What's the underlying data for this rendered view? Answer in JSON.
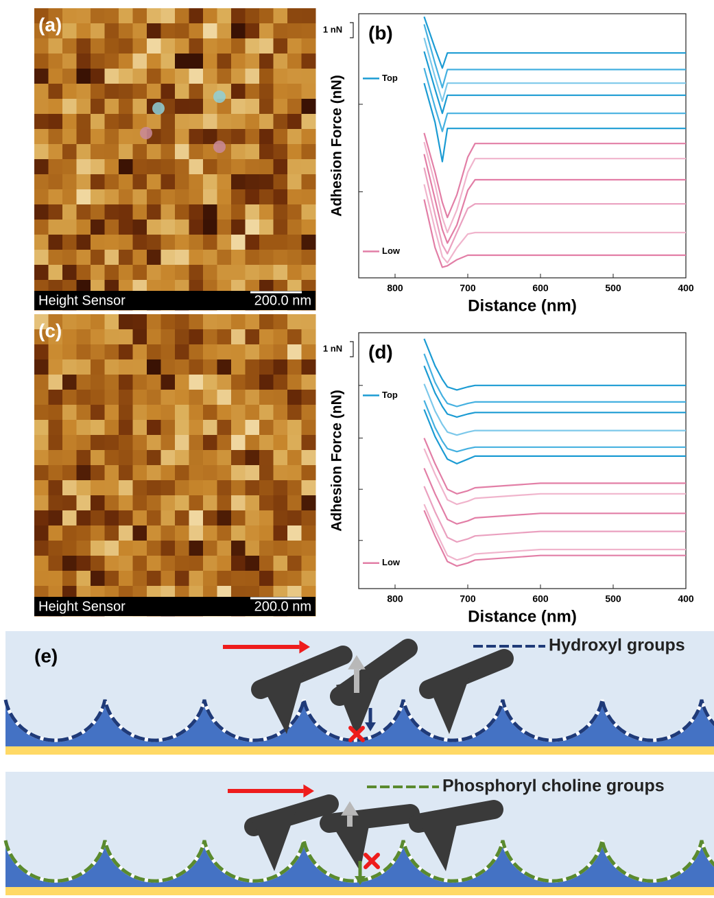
{
  "panels": {
    "a": {
      "label": "(a)",
      "caption": "Height Sensor",
      "scale_bar": "200.0 nm"
    },
    "c": {
      "label": "(c)",
      "caption": "Height Sensor",
      "scale_bar": "200.0 nm"
    },
    "e": {
      "label": "(e)",
      "legend": [
        "Hydroxyl groups",
        "Phosphoryl choline groups"
      ]
    }
  },
  "chart_data": [
    {
      "type": "line",
      "label": "(b)",
      "scale_bar": "1 nN",
      "x_label": "Distance (nm)",
      "y_label": "Adhesion Force (nN)",
      "x": [
        760,
        745,
        735,
        728,
        715,
        700,
        690,
        600,
        500,
        400
      ],
      "xlim": [
        850,
        400
      ],
      "xticks": [
        800,
        700,
        600,
        500,
        400
      ],
      "ylim": [
        0,
        17.5
      ],
      "yticks": [
        5.7,
        11.5
      ],
      "series": [
        {
          "name": "Top",
          "color": "#1b9bd3",
          "values": [
            17.3,
            15.2,
            13.9,
            14.9,
            14.9,
            14.9,
            14.9,
            14.9,
            14.9,
            14.9
          ]
        },
        {
          "color": "#44b0e0",
          "values": [
            16.8,
            14.2,
            12.6,
            13.8,
            13.8,
            13.8,
            13.8,
            13.8,
            13.8,
            13.8
          ]
        },
        {
          "color": "#7cc8ea",
          "values": [
            15.9,
            13.3,
            11.7,
            12.9,
            12.9,
            12.9,
            12.9,
            12.9,
            12.9,
            12.9
          ]
        },
        {
          "color": "#1b9bd3",
          "values": [
            15.0,
            12.5,
            10.9,
            12.1,
            12.1,
            12.1,
            12.1,
            12.1,
            12.1,
            12.1
          ]
        },
        {
          "color": "#44b0e0",
          "values": [
            13.9,
            11.3,
            9.7,
            10.9,
            10.9,
            10.9,
            10.9,
            10.9,
            10.9,
            10.9
          ]
        },
        {
          "color": "#1b9bd3",
          "values": [
            12.9,
            10.3,
            7.7,
            9.9,
            9.9,
            9.9,
            9.9,
            9.9,
            9.9,
            9.9
          ]
        },
        {
          "color": "#e27ea6",
          "values": [
            9.6,
            7.0,
            5.0,
            4.0,
            5.5,
            8.0,
            8.9,
            8.9,
            8.9,
            8.9
          ]
        },
        {
          "color": "#f0b4cc",
          "values": [
            9.0,
            6.2,
            4.0,
            3.0,
            4.5,
            7.0,
            7.9,
            7.9,
            7.9,
            7.9
          ]
        },
        {
          "color": "#e27ea6",
          "values": [
            8.2,
            5.2,
            3.2,
            2.3,
            3.5,
            5.8,
            6.5,
            6.5,
            6.5,
            6.5
          ]
        },
        {
          "color": "#eaa0bf",
          "values": [
            7.3,
            4.2,
            2.2,
            1.6,
            3.0,
            4.6,
            4.9,
            4.9,
            4.9,
            4.9
          ]
        },
        {
          "color": "#f0b4cc",
          "values": [
            6.2,
            3.2,
            1.4,
            1.0,
            2.0,
            2.9,
            3.0,
            3.0,
            3.0,
            3.0
          ]
        },
        {
          "name": "Low",
          "color": "#e27ea6",
          "values": [
            5.2,
            2.0,
            0.7,
            0.8,
            1.2,
            1.5,
            1.5,
            1.5,
            1.5,
            1.5
          ]
        }
      ]
    },
    {
      "type": "line",
      "label": "(d)",
      "scale_bar": "1 nN",
      "x_label": "Distance (nm)",
      "y_label": "Adhesion Force (nN)",
      "x": [
        760,
        745,
        735,
        728,
        715,
        700,
        690,
        600,
        500,
        400
      ],
      "xlim": [
        850,
        400
      ],
      "xticks": [
        800,
        700,
        600,
        500,
        400
      ],
      "ylim": [
        0,
        17
      ],
      "yticks": [
        3.2,
        6.6,
        10.0,
        13.5
      ],
      "series": [
        {
          "name": "Top",
          "color": "#1b9bd3",
          "values": [
            16.6,
            14.8,
            13.9,
            13.4,
            13.2,
            13.4,
            13.5,
            13.5,
            13.5,
            13.5
          ]
        },
        {
          "color": "#44b0e0",
          "values": [
            15.6,
            13.7,
            12.8,
            12.3,
            12.1,
            12.3,
            12.4,
            12.4,
            12.4,
            12.4
          ]
        },
        {
          "color": "#1b9bd3",
          "values": [
            14.8,
            13.0,
            12.1,
            11.6,
            11.4,
            11.6,
            11.7,
            11.7,
            11.7,
            11.7
          ]
        },
        {
          "color": "#7cc8ea",
          "values": [
            13.6,
            11.8,
            10.9,
            10.4,
            10.2,
            10.4,
            10.5,
            10.5,
            10.5,
            10.5
          ]
        },
        {
          "color": "#44b0e0",
          "values": [
            12.5,
            10.7,
            9.8,
            9.3,
            9.1,
            9.3,
            9.4,
            9.4,
            9.4,
            9.4
          ]
        },
        {
          "color": "#1b9bd3",
          "values": [
            11.9,
            10.1,
            9.2,
            8.6,
            8.3,
            8.6,
            8.8,
            8.8,
            8.8,
            8.8
          ]
        },
        {
          "color": "#e27ea6",
          "values": [
            10.0,
            8.3,
            7.3,
            6.6,
            6.3,
            6.5,
            6.7,
            7.0,
            7.0,
            7.0
          ]
        },
        {
          "color": "#f0b4cc",
          "values": [
            9.3,
            7.6,
            6.6,
            5.9,
            5.6,
            5.8,
            6.0,
            6.3,
            6.3,
            6.3
          ]
        },
        {
          "color": "#e27ea6",
          "values": [
            8.0,
            6.3,
            5.3,
            4.6,
            4.3,
            4.5,
            4.7,
            5.0,
            5.0,
            5.0
          ]
        },
        {
          "color": "#eaa0bf",
          "values": [
            6.8,
            5.1,
            4.1,
            3.4,
            3.1,
            3.3,
            3.5,
            3.8,
            3.8,
            3.8
          ]
        },
        {
          "color": "#f0b4cc",
          "values": [
            5.6,
            3.9,
            2.9,
            2.2,
            1.9,
            2.1,
            2.3,
            2.6,
            2.6,
            2.6
          ]
        },
        {
          "name": "Low",
          "color": "#e27ea6",
          "values": [
            5.2,
            3.5,
            2.5,
            1.8,
            1.5,
            1.7,
            1.9,
            2.2,
            2.2,
            2.2
          ]
        }
      ]
    }
  ]
}
